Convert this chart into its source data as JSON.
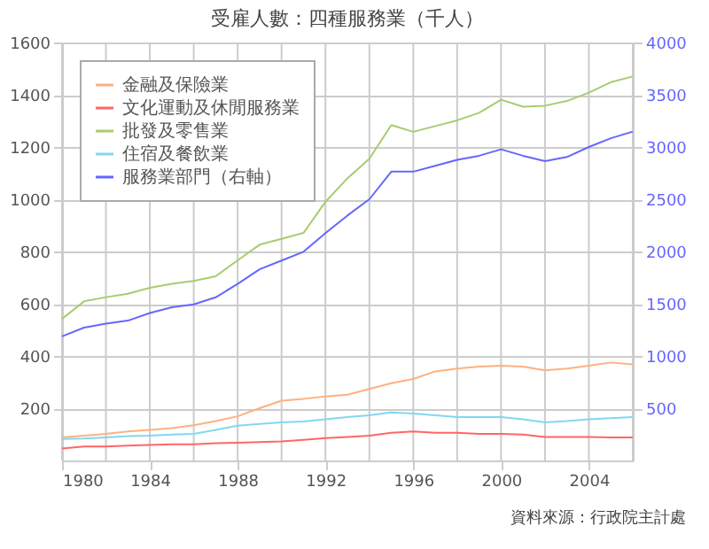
{
  "chart_data": {
    "type": "line",
    "title": "受雇人數：四種服務業（千人）",
    "x": [
      1980,
      1981,
      1982,
      1983,
      1984,
      1985,
      1986,
      1987,
      1988,
      1989,
      1990,
      1991,
      1992,
      1993,
      1994,
      1995,
      1996,
      1997,
      1998,
      1999,
      2000,
      2001,
      2002,
      2003,
      2004,
      2005,
      2006
    ],
    "series": [
      {
        "name": "金融及保險業",
        "color": "#ffb080",
        "values": [
          88,
          95,
          102,
          111,
          117,
          124,
          135,
          151,
          169,
          200,
          229,
          236,
          245,
          252,
          274,
          296,
          312,
          341,
          352,
          359,
          363,
          359,
          345,
          352,
          363,
          375,
          368
        ]
      },
      {
        "name": "文化運動及休閒服務業",
        "color": "#ff6666",
        "values": [
          46,
          53,
          53,
          57,
          59,
          62,
          62,
          66,
          68,
          70,
          73,
          79,
          86,
          90,
          95,
          106,
          111,
          106,
          106,
          102,
          102,
          99,
          90,
          90,
          90,
          88,
          88
        ]
      },
      {
        "name": "批發及零售業",
        "color": "#a8cc70",
        "values": [
          542,
          609,
          625,
          638,
          661,
          676,
          687,
          705,
          766,
          826,
          848,
          871,
          990,
          1080,
          1155,
          1284,
          1258,
          1280,
          1302,
          1331,
          1381,
          1354,
          1358,
          1376,
          1408,
          1448,
          1470
        ]
      },
      {
        "name": "住宿及餐飲業",
        "color": "#80d8f0",
        "values": [
          82,
          84,
          88,
          93,
          95,
          99,
          102,
          117,
          133,
          140,
          146,
          149,
          158,
          166,
          173,
          184,
          180,
          173,
          166,
          166,
          166,
          158,
          146,
          151,
          158,
          162,
          166
        ]
      },
      {
        "name": "服務業部門（右軸）",
        "color": "#6666ff",
        "axis": "y2",
        "values": [
          1187,
          1271,
          1310,
          1338,
          1411,
          1466,
          1494,
          1561,
          1690,
          1830,
          1913,
          1997,
          2176,
          2344,
          2500,
          2764,
          2764,
          2820,
          2877,
          2916,
          2978,
          2916,
          2865,
          2904,
          3000,
          3084,
          3147
        ]
      }
    ],
    "xlim": [
      1980,
      2006
    ],
    "xticks": [
      1980,
      {
        "value": 1982,
        "label": null
      },
      1984,
      {
        "value": 1986,
        "label": null
      },
      1988,
      {
        "value": 1990,
        "label": null
      },
      1992,
      {
        "value": 1994,
        "label": null
      },
      1996,
      {
        "value": 1998,
        "label": null
      },
      2000,
      {
        "value": 2002,
        "label": null
      },
      2004,
      {
        "value": 2006,
        "label": null
      }
    ],
    "ylim": [
      0,
      1600
    ],
    "yticks": [
      200,
      400,
      600,
      800,
      1000,
      1200,
      1400,
      1600
    ],
    "y2lim": [
      0,
      4000
    ],
    "y2ticks": [
      500,
      1000,
      1500,
      2000,
      2500,
      3000,
      3500,
      4000
    ],
    "grid": true,
    "legend": "top left",
    "marker": "none",
    "line_style": "solid",
    "annotations": [
      "資料來源：行政院主計處"
    ]
  }
}
